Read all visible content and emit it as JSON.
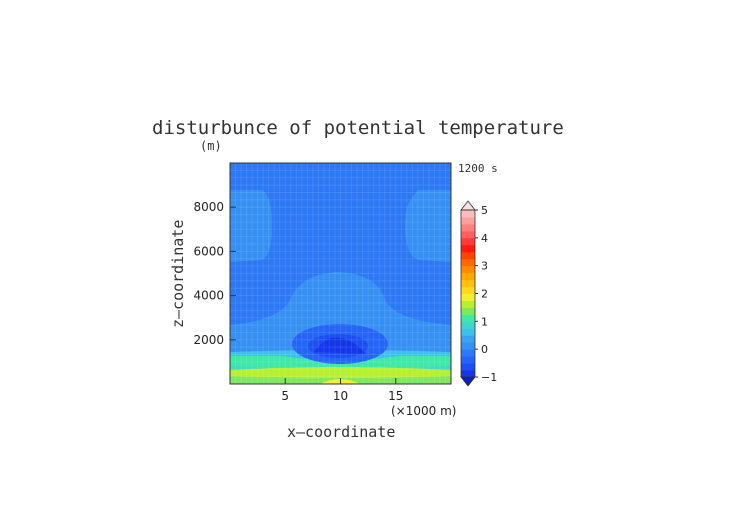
{
  "chart_data": {
    "type": "heatmap",
    "title": "disturbunce of potential temperature",
    "z_unit_label": "(m)",
    "time_label": "1200 s",
    "xlabel": "x—coordinate",
    "ylabel": "z—coordinate",
    "x_unit_label": "(×1000 m)",
    "xlim": [
      0,
      20
    ],
    "ylim": [
      0,
      10000
    ],
    "x_ticks": [
      {
        "v": 5,
        "t": "5"
      },
      {
        "v": 10,
        "t": "10"
      },
      {
        "v": 15,
        "t": "15"
      }
    ],
    "y_ticks": [
      {
        "v": 2000,
        "t": "2000"
      },
      {
        "v": 4000,
        "t": "4000"
      },
      {
        "v": 6000,
        "t": "6000"
      },
      {
        "v": 8000,
        "t": "8000"
      }
    ],
    "colorbar": {
      "min": -1,
      "max": 5,
      "step": 0.25,
      "tick_labels": [
        {
          "v": -1,
          "t": "−1"
        },
        {
          "v": 0,
          "t": "0"
        },
        {
          "v": 1,
          "t": "1"
        },
        {
          "v": 2,
          "t": "2"
        },
        {
          "v": 3,
          "t": "3"
        },
        {
          "v": 4,
          "t": "4"
        },
        {
          "v": 5,
          "t": "5"
        }
      ],
      "colors": [
        "#1436e8",
        "#1c4ef2",
        "#2464f6",
        "#2d78f5",
        "#3690f3",
        "#3aa2f2",
        "#3ec0ec",
        "#40d6d0",
        "#40e8a8",
        "#80e860",
        "#b8f030",
        "#f0f030",
        "#ffd820",
        "#ffc010",
        "#ffa800",
        "#ff8c00",
        "#ff6a00",
        "#ff4400",
        "#ff1a10",
        "#ff3838",
        "#ff6060",
        "#ff8080",
        "#ffa0a0",
        "#ffbcbc"
      ]
    },
    "field_features": [
      {
        "x": 10,
        "z": 1700,
        "value": -0.8
      },
      {
        "x": 10,
        "z": 2000,
        "value": -0.4
      },
      {
        "x": 10,
        "z": 4000,
        "value": 0.05
      },
      {
        "x": 1,
        "z": 7000,
        "value": 0.05
      },
      {
        "x": 19,
        "z": 7000,
        "value": 0.05
      },
      {
        "x": 10,
        "z": 9000,
        "value": -0.1
      },
      {
        "x": 2,
        "z": 1100,
        "value": 1.0
      },
      {
        "x": 10,
        "z": 300,
        "value": 1.5
      },
      {
        "x": 10,
        "z": 50,
        "value": 2.0
      }
    ]
  }
}
